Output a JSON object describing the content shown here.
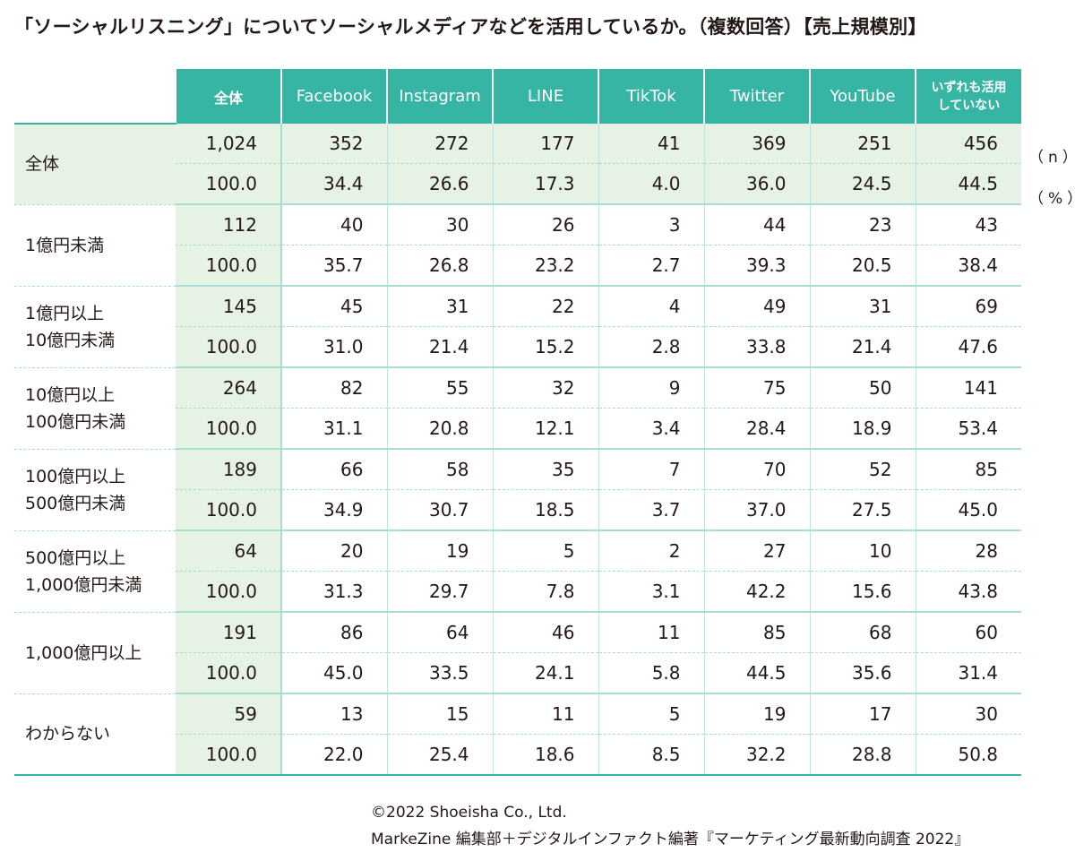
{
  "title": "「ソーシャルリスニング」についてソーシャルメディアなどを活用しているか。（複数回答）【売上規模別】",
  "units": {
    "n": "（n）",
    "pct": "（%）"
  },
  "credits": [
    "©2022 Shoeisha Co., Ltd.",
    "MarkeZine 編集部＋デジタルインファクト編著『マーケティング最新動向調査 2022』"
  ],
  "colors": {
    "header_bg": "#36b5a4",
    "total_bg": "#e5f2e4",
    "rule": "#a9dcd3",
    "text": "#231815"
  },
  "chart_data": {
    "type": "table",
    "columns": [
      "全体",
      "Facebook",
      "Instagram",
      "LINE",
      "TikTok",
      "Twitter",
      "YouTube",
      "いずれも活用していない"
    ],
    "rows": [
      {
        "label": [
          "全体"
        ],
        "n": [
          "1,024",
          "352",
          "272",
          "177",
          "41",
          "369",
          "251",
          "456"
        ],
        "pct": [
          "100.0",
          "34.4",
          "26.6",
          "17.3",
          "4.0",
          "36.0",
          "24.5",
          "44.5"
        ]
      },
      {
        "label": [
          "1億円未満"
        ],
        "n": [
          "112",
          "40",
          "30",
          "26",
          "3",
          "44",
          "23",
          "43"
        ],
        "pct": [
          "100.0",
          "35.7",
          "26.8",
          "23.2",
          "2.7",
          "39.3",
          "20.5",
          "38.4"
        ]
      },
      {
        "label": [
          "1億円以上",
          "10億円未満"
        ],
        "n": [
          "145",
          "45",
          "31",
          "22",
          "4",
          "49",
          "31",
          "69"
        ],
        "pct": [
          "100.0",
          "31.0",
          "21.4",
          "15.2",
          "2.8",
          "33.8",
          "21.4",
          "47.6"
        ]
      },
      {
        "label": [
          "10億円以上",
          "100億円未満"
        ],
        "n": [
          "264",
          "82",
          "55",
          "32",
          "9",
          "75",
          "50",
          "141"
        ],
        "pct": [
          "100.0",
          "31.1",
          "20.8",
          "12.1",
          "3.4",
          "28.4",
          "18.9",
          "53.4"
        ]
      },
      {
        "label": [
          "100億円以上",
          "500億円未満"
        ],
        "n": [
          "189",
          "66",
          "58",
          "35",
          "7",
          "70",
          "52",
          "85"
        ],
        "pct": [
          "100.0",
          "34.9",
          "30.7",
          "18.5",
          "3.7",
          "37.0",
          "27.5",
          "45.0"
        ]
      },
      {
        "label": [
          "500億円以上",
          "1,000億円未満"
        ],
        "n": [
          "64",
          "20",
          "19",
          "5",
          "2",
          "27",
          "10",
          "28"
        ],
        "pct": [
          "100.0",
          "31.3",
          "29.7",
          "7.8",
          "3.1",
          "42.2",
          "15.6",
          "43.8"
        ]
      },
      {
        "label": [
          "1,000億円以上"
        ],
        "n": [
          "191",
          "86",
          "64",
          "46",
          "11",
          "85",
          "68",
          "60"
        ],
        "pct": [
          "100.0",
          "45.0",
          "33.5",
          "24.1",
          "5.8",
          "44.5",
          "35.6",
          "31.4"
        ]
      },
      {
        "label": [
          "わからない"
        ],
        "n": [
          "59",
          "13",
          "15",
          "11",
          "5",
          "19",
          "17",
          "30"
        ],
        "pct": [
          "100.0",
          "22.0",
          "25.4",
          "18.6",
          "8.5",
          "32.2",
          "28.8",
          "50.8"
        ]
      }
    ]
  }
}
